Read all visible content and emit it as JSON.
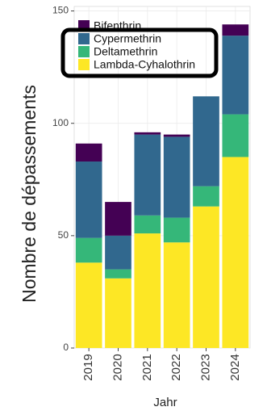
{
  "chart_data": {
    "type": "stacked-bar",
    "x_label": "Jahr",
    "y_label": "Nombre de dépassements",
    "categories": [
      "2019",
      "2020",
      "2021",
      "2022",
      "2023",
      "2024"
    ],
    "series": [
      {
        "name": "Bifenthrin",
        "color": "#440154",
        "values": [
          8,
          15,
          1,
          1,
          0,
          5
        ]
      },
      {
        "name": "Cypermethrin",
        "color": "#31688e",
        "values": [
          34,
          15,
          36,
          36,
          40,
          35
        ]
      },
      {
        "name": "Deltamethrin",
        "color": "#35b779",
        "values": [
          11,
          4,
          8,
          11,
          9,
          19
        ]
      },
      {
        "name": "Lambda-Cyhalothrin",
        "color": "#fde725",
        "values": [
          38,
          31,
          51,
          47,
          63,
          85
        ]
      }
    ],
    "ylim": [
      0,
      152
    ],
    "yticks": [
      0,
      50,
      100,
      150
    ],
    "grid": true
  }
}
